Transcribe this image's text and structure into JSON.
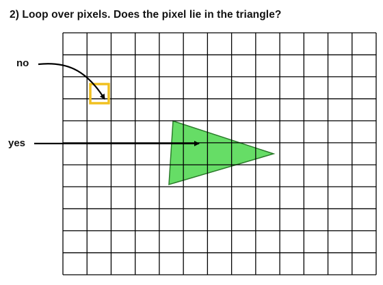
{
  "title": "2) Loop over pixels. Does the pixel lie in the triangle?",
  "labels": {
    "no": "no",
    "yes": "yes"
  },
  "grid": {
    "columns": 13,
    "rows": 11
  },
  "colors": {
    "grid_line": "#000000",
    "triangle_fill": "#66dd66",
    "triangle_stroke": "#2a7a2a",
    "highlight_box": "#f0c020",
    "arrow": "#000000"
  }
}
